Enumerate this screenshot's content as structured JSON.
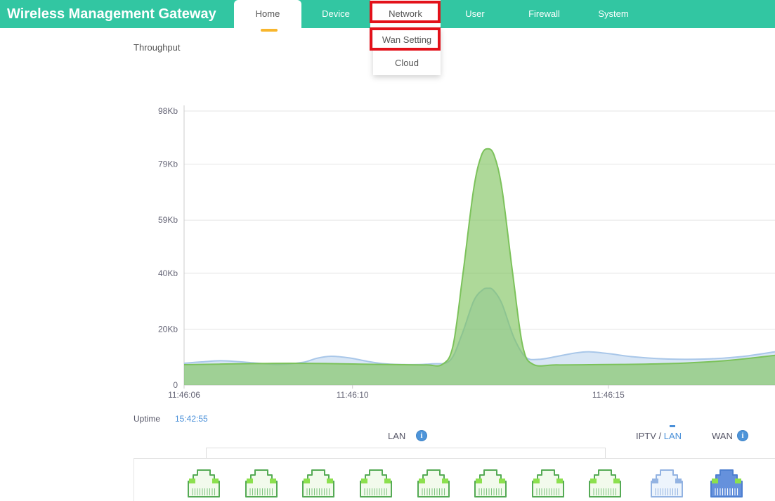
{
  "header": {
    "title": "Wireless Management Gateway",
    "accent_color": "#32c6a2",
    "active_tab_underline_color": "#f8b62d",
    "nav": [
      {
        "label": "Home",
        "active": true
      },
      {
        "label": "Device"
      },
      {
        "label": "Network",
        "dropdown_open": true,
        "annotated": true
      },
      {
        "label": "User"
      },
      {
        "label": "Firewall"
      },
      {
        "label": "System"
      }
    ]
  },
  "network_dropdown": {
    "items": [
      {
        "label": "Wan Setting",
        "annotated": true
      },
      {
        "label": "Cloud"
      }
    ]
  },
  "annotations": {
    "highlight_color": "#e3111a",
    "targets": [
      "Network tab",
      "Wan Setting menu item"
    ]
  },
  "chart_data": {
    "type": "area",
    "title": "Throughput",
    "unit": "Kb",
    "y_axis_max": 98,
    "grid": true,
    "y_ticks": [
      {
        "label": "98Kb",
        "value": 98
      },
      {
        "label": "79Kb",
        "value": 79
      },
      {
        "label": "59Kb",
        "value": 59
      },
      {
        "label": "40Kb",
        "value": 40
      },
      {
        "label": "20Kb",
        "value": 20
      },
      {
        "label": "0",
        "value": 0
      }
    ],
    "x_ticks": [
      {
        "label": "11:46:06",
        "pos": 0.0
      },
      {
        "label": "11:46:10",
        "pos": 0.285
      },
      {
        "label": "11:46:15",
        "pos": 0.718
      }
    ],
    "series": [
      {
        "name": "blue-area",
        "stroke": "#a9c7e9",
        "fill": "rgba(169,199,233,0.45)",
        "points": [
          [
            0,
            7.8
          ],
          [
            0.03,
            8.3
          ],
          [
            0.061,
            8.7
          ],
          [
            0.09,
            8.4
          ],
          [
            0.12,
            7.9
          ],
          [
            0.16,
            7.4
          ],
          [
            0.2,
            8.1
          ],
          [
            0.225,
            9.6
          ],
          [
            0.249,
            10.3
          ],
          [
            0.28,
            9.7
          ],
          [
            0.31,
            8.5
          ],
          [
            0.34,
            7.6
          ],
          [
            0.38,
            7.3
          ],
          [
            0.42,
            7.6
          ],
          [
            0.45,
            8.8
          ],
          [
            0.47,
            18
          ],
          [
            0.49,
            30
          ],
          [
            0.505,
            34
          ],
          [
            0.514,
            34.6
          ],
          [
            0.523,
            34
          ],
          [
            0.538,
            29
          ],
          [
            0.558,
            17
          ],
          [
            0.578,
            10
          ],
          [
            0.6,
            9.2
          ],
          [
            0.63,
            10.2
          ],
          [
            0.66,
            11.4
          ],
          [
            0.685,
            11.9
          ],
          [
            0.72,
            11.2
          ],
          [
            0.76,
            10.1
          ],
          [
            0.82,
            9.3
          ],
          [
            0.88,
            9.3
          ],
          [
            0.94,
            10.1
          ],
          [
            1,
            11.9
          ]
        ]
      },
      {
        "name": "green-area",
        "stroke": "#7cc25b",
        "fill": "rgba(124,194,91,0.62)",
        "points": [
          [
            0,
            7.3
          ],
          [
            0.06,
            7.5
          ],
          [
            0.12,
            7.7
          ],
          [
            0.18,
            7.8
          ],
          [
            0.24,
            7.7
          ],
          [
            0.3,
            7.5
          ],
          [
            0.36,
            7.3
          ],
          [
            0.41,
            7.2
          ],
          [
            0.437,
            7.4
          ],
          [
            0.455,
            14
          ],
          [
            0.472,
            40
          ],
          [
            0.49,
            70
          ],
          [
            0.503,
            82
          ],
          [
            0.514,
            84.5
          ],
          [
            0.525,
            82
          ],
          [
            0.538,
            70
          ],
          [
            0.556,
            40
          ],
          [
            0.573,
            14
          ],
          [
            0.591,
            7.4
          ],
          [
            0.63,
            7.2
          ],
          [
            0.7,
            7.3
          ],
          [
            0.78,
            7.5
          ],
          [
            0.85,
            7.9
          ],
          [
            0.92,
            8.8
          ],
          [
            1,
            10.6
          ]
        ]
      }
    ]
  },
  "uptime": {
    "label": "Uptime",
    "value": "15:42:55"
  },
  "ports_section": {
    "lan_label": "LAN",
    "iptv_label_prefix": "IPTV / ",
    "iptv_label_lan": "LAN",
    "wan_label": "WAN",
    "info_icon_glyph": "i",
    "ports": [
      "lan",
      "lan",
      "lan",
      "lan",
      "lan",
      "lan",
      "lan",
      "lan",
      "iptv-lan",
      "wan"
    ],
    "port_colors": {
      "lan": {
        "stroke": "#55aa55",
        "fill": "#f2faec",
        "led": "#8ce04e",
        "pins": "#7fc47f"
      },
      "iptv-lan": {
        "stroke": "#93b3e2",
        "fill": "#edf4fc",
        "led": "#93b3e2",
        "pins": "#93b3e2"
      },
      "wan": {
        "stroke": "#4d7fd0",
        "fill": "#6591dc",
        "led": "#8ce04e",
        "pins": "#ffffff"
      }
    }
  }
}
